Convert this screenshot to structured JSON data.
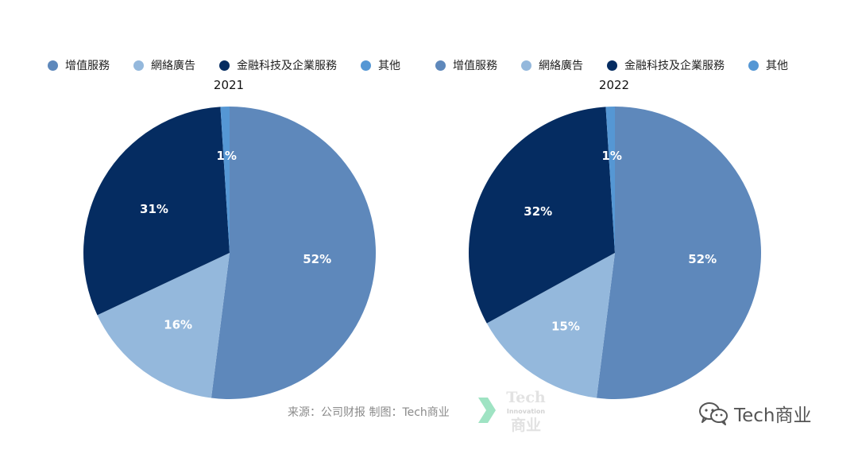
{
  "chart_data": [
    {
      "type": "pie",
      "title": "2021",
      "categories": [
        "增值服務",
        "網絡廣告",
        "金融科技及企業服務",
        "其他"
      ],
      "values": [
        52,
        16,
        31,
        1
      ],
      "labels": [
        "52%",
        "16%",
        "31%",
        "1%"
      ],
      "colors": [
        "#5e88bb",
        "#94b8dc",
        "#052c61",
        "#5597d4"
      ],
      "legend": "top"
    },
    {
      "type": "pie",
      "title": "2022",
      "categories": [
        "增值服務",
        "網絡廣告",
        "金融科技及企業服務",
        "其他"
      ],
      "values": [
        52,
        15,
        32,
        1
      ],
      "labels": [
        "52%",
        "15%",
        "32%",
        "1%"
      ],
      "colors": [
        "#5e88bb",
        "#94b8dc",
        "#052c61",
        "#5597d4"
      ],
      "legend": "top"
    }
  ],
  "legends": [
    {
      "items": [
        {
          "label": "增值服務",
          "color": "#5e88bb"
        },
        {
          "label": "網絡廣告",
          "color": "#94b8dc"
        },
        {
          "label": "金融科技及企業服務",
          "color": "#052c61"
        },
        {
          "label": "其他",
          "color": "#5597d4"
        }
      ]
    },
    {
      "items": [
        {
          "label": "增值服務",
          "color": "#5e88bb"
        },
        {
          "label": "網絡廣告",
          "color": "#94b8dc"
        },
        {
          "label": "金融科技及企業服務",
          "color": "#052c61"
        },
        {
          "label": "其他",
          "color": "#5597d4"
        }
      ]
    }
  ],
  "footer": {
    "source": "来源：公司财报 制图：Tech商业"
  },
  "logo": {
    "line1": "Tech",
    "line2": "Innovation",
    "line3": "商业"
  },
  "watermark": {
    "icon": "wechat-icon",
    "text": "Tech商业"
  }
}
